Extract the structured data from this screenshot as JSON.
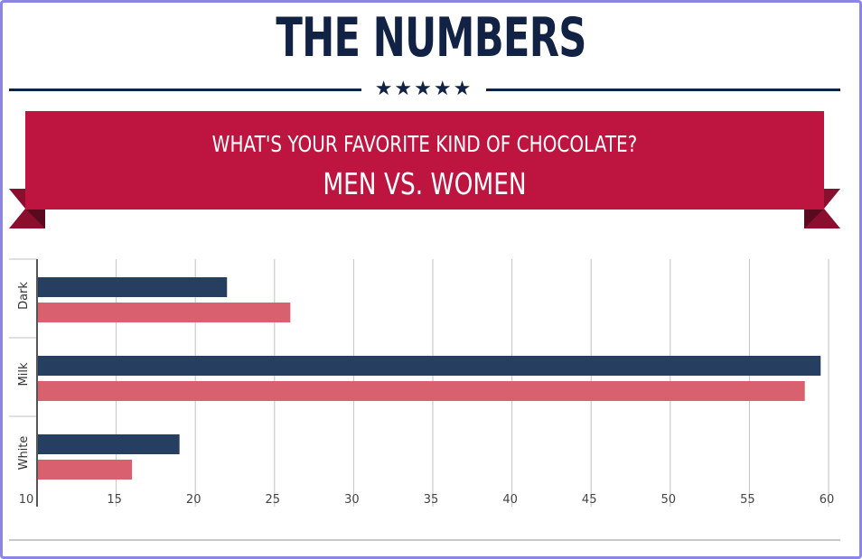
{
  "header": {
    "title": "THE NUMBERS",
    "stars": "★★★★★"
  },
  "banner": {
    "question": "WHAT'S YOUR FAVORITE KIND OF CHOCOLATE?",
    "subtitle": "MEN VS. WOMEN"
  },
  "colors": {
    "navy": "#112244",
    "banner_red": "#bd153f",
    "ribbon_dark": "#8c0e2f",
    "series_men": "#263f61",
    "series_women": "#d9606e",
    "grid": "#c2c2c2",
    "axis": "#555555",
    "frame": "#8b85e6"
  },
  "chart_data": {
    "type": "bar",
    "orientation": "horizontal",
    "categories": [
      "Dark",
      "Milk",
      "White"
    ],
    "series": [
      {
        "values": [
          22,
          59.5,
          19
        ],
        "color": "#263f61"
      },
      {
        "values": [
          26,
          58.5,
          16
        ],
        "color": "#d9606e"
      }
    ],
    "xlim": [
      10,
      60
    ],
    "xticks": [
      "10",
      "15",
      "20",
      "25",
      "30",
      "35",
      "40",
      "45",
      "50",
      "55",
      "60"
    ],
    "grid": true,
    "legend": "none",
    "title": "",
    "xlabel": "",
    "ylabel": ""
  }
}
